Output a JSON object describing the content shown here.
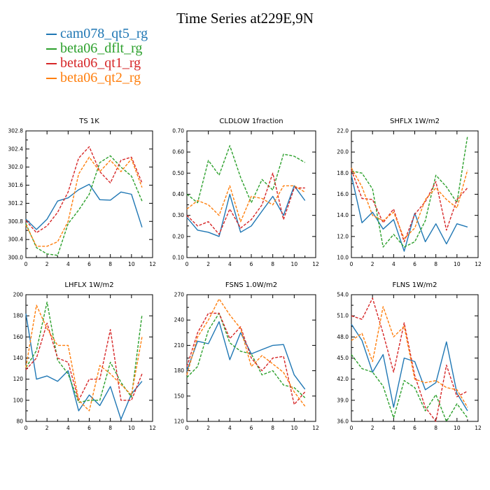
{
  "title": "Time Series at229E,9N",
  "legend": [
    {
      "name": "cam078_qt5_rg",
      "color": "#1f77b4"
    },
    {
      "name": "beta06_dflt_rg",
      "color": "#2ca02c"
    },
    {
      "name": "beta06_qt1_rg",
      "color": "#d62728"
    },
    {
      "name": "beta06_qt2_rg",
      "color": "#ff7f0e"
    }
  ],
  "chart_data": [
    {
      "type": "line",
      "title": "TS   1K",
      "x": [
        0,
        1,
        2,
        3,
        4,
        5,
        6,
        7,
        8,
        9,
        10,
        11
      ],
      "xlim": [
        0,
        12
      ],
      "xticks": [
        0,
        2,
        4,
        6,
        8,
        10,
        12
      ],
      "ylim": [
        300.0,
        302.8
      ],
      "yticks": [
        "300.0",
        "300.4",
        "300.8",
        "301.2",
        "301.6",
        "302.0",
        "302.4",
        "302.8"
      ],
      "series": [
        {
          "name": "cam078_qt5_rg",
          "color": "#1f77b4",
          "dashed": false,
          "values": [
            300.85,
            300.62,
            300.85,
            301.25,
            301.32,
            301.5,
            301.62,
            301.28,
            301.27,
            301.45,
            301.4,
            300.67
          ]
        },
        {
          "name": "beta06_dflt_rg",
          "color": "#2ca02c",
          "dashed": true,
          "values": [
            300.75,
            300.22,
            300.08,
            300.05,
            300.75,
            301.05,
            301.4,
            302.1,
            302.25,
            302.0,
            301.8,
            301.25
          ]
        },
        {
          "name": "beta06_qt1_rg",
          "color": "#d62728",
          "dashed": true,
          "values": [
            300.82,
            300.55,
            300.7,
            301.0,
            301.45,
            302.2,
            302.45,
            301.9,
            301.65,
            302.15,
            302.22,
            301.65
          ]
        },
        {
          "name": "beta06_qt2_rg",
          "color": "#ff7f0e",
          "dashed": true,
          "values": [
            300.72,
            300.25,
            300.25,
            300.35,
            300.8,
            301.85,
            302.22,
            301.9,
            302.15,
            301.9,
            302.18,
            301.55
          ]
        }
      ]
    },
    {
      "type": "line",
      "title": "CLDLOW   1fraction",
      "x": [
        0,
        1,
        2,
        3,
        4,
        5,
        6,
        7,
        8,
        9,
        10,
        11
      ],
      "xlim": [
        0,
        12
      ],
      "xticks": [
        0,
        2,
        4,
        6,
        8,
        10,
        12
      ],
      "ylim": [
        0.1,
        0.7
      ],
      "yticks": [
        "0.10",
        "0.20",
        "0.30",
        "0.40",
        "0.50",
        "0.60",
        "0.70"
      ],
      "series": [
        {
          "name": "cam078_qt5_rg",
          "color": "#1f77b4",
          "dashed": false,
          "values": [
            0.29,
            0.23,
            0.22,
            0.2,
            0.4,
            0.22,
            0.25,
            0.32,
            0.39,
            0.3,
            0.44,
            0.37
          ]
        },
        {
          "name": "beta06_dflt_rg",
          "color": "#2ca02c",
          "dashed": true,
          "values": [
            0.4,
            0.36,
            0.56,
            0.49,
            0.63,
            0.48,
            0.36,
            0.47,
            0.42,
            0.59,
            0.58,
            0.55
          ]
        },
        {
          "name": "beta06_qt1_rg",
          "color": "#d62728",
          "dashed": true,
          "values": [
            0.3,
            0.25,
            0.27,
            0.21,
            0.33,
            0.24,
            0.28,
            0.35,
            0.5,
            0.28,
            0.43,
            0.43
          ]
        },
        {
          "name": "beta06_qt2_rg",
          "color": "#ff7f0e",
          "dashed": true,
          "values": [
            0.33,
            0.37,
            0.35,
            0.3,
            0.44,
            0.27,
            0.39,
            0.38,
            0.35,
            0.44,
            0.44,
            0.41
          ]
        }
      ]
    },
    {
      "type": "line",
      "title": "SHFLX   1W/m2",
      "x": [
        0,
        1,
        2,
        3,
        4,
        5,
        6,
        7,
        8,
        9,
        10,
        11
      ],
      "xlim": [
        0,
        12
      ],
      "xticks": [
        0,
        2,
        4,
        6,
        8,
        10,
        12
      ],
      "ylim": [
        10.0,
        22.0
      ],
      "yticks": [
        "10.0",
        "12.0",
        "14.0",
        "16.0",
        "18.0",
        "20.0",
        "22.0"
      ],
      "series": [
        {
          "name": "cam078_qt5_rg",
          "color": "#1f77b4",
          "dashed": false,
          "values": [
            17.8,
            13.3,
            14.3,
            12.7,
            13.6,
            10.6,
            14.2,
            11.5,
            13.2,
            11.3,
            13.2,
            12.9
          ]
        },
        {
          "name": "beta06_dflt_rg",
          "color": "#2ca02c",
          "dashed": true,
          "values": [
            18.2,
            18.0,
            16.5,
            11.0,
            12.2,
            11.0,
            11.5,
            13.5,
            17.8,
            16.7,
            15.2,
            21.5
          ]
        },
        {
          "name": "beta06_qt1_rg",
          "color": "#d62728",
          "dashed": true,
          "values": [
            18.3,
            15.6,
            15.5,
            13.3,
            14.6,
            11.5,
            14.1,
            15.3,
            17.2,
            12.6,
            15.5,
            16.6
          ]
        },
        {
          "name": "beta06_qt2_rg",
          "color": "#ff7f0e",
          "dashed": true,
          "values": [
            18.5,
            16.7,
            14.0,
            13.5,
            14.3,
            11.8,
            12.8,
            15.5,
            16.6,
            15.5,
            14.7,
            18.3
          ]
        }
      ]
    },
    {
      "type": "line",
      "title": "LHFLX   1W/m2",
      "x": [
        0,
        1,
        2,
        3,
        4,
        5,
        6,
        7,
        8,
        9,
        10,
        11
      ],
      "xlim": [
        0,
        12
      ],
      "xticks": [
        0,
        2,
        4,
        6,
        8,
        10,
        12
      ],
      "ylim": [
        80,
        200
      ],
      "yticks": [
        "80",
        "100",
        "120",
        "140",
        "160",
        "180",
        "200"
      ],
      "series": [
        {
          "name": "cam078_qt5_rg",
          "color": "#1f77b4",
          "dashed": false,
          "values": [
            182,
            120,
            123,
            118,
            128,
            90,
            105,
            95,
            113,
            82,
            106,
            118
          ]
        },
        {
          "name": "beta06_dflt_rg",
          "color": "#2ca02c",
          "dashed": true,
          "values": [
            131,
            147,
            193,
            138,
            125,
            98,
            100,
            100,
            136,
            117,
            103,
            181
          ]
        },
        {
          "name": "beta06_qt1_rg",
          "color": "#d62728",
          "dashed": true,
          "values": [
            129,
            140,
            173,
            140,
            136,
            100,
            120,
            120,
            167,
            100,
            100,
            125
          ]
        },
        {
          "name": "beta06_qt2_rg",
          "color": "#ff7f0e",
          "dashed": true,
          "values": [
            131,
            190,
            168,
            152,
            152,
            100,
            90,
            133,
            125,
            115,
            105,
            160
          ]
        }
      ]
    },
    {
      "type": "line",
      "title": "FSNS   1.0W/m2",
      "x": [
        0,
        1,
        2,
        3,
        4,
        5,
        6,
        7,
        8,
        9,
        10,
        11
      ],
      "xlim": [
        0,
        12
      ],
      "xticks": [
        0,
        2,
        4,
        6,
        8,
        10,
        12
      ],
      "ylim": [
        120,
        270
      ],
      "yticks": [
        "120",
        "150",
        "180",
        "210",
        "240",
        "270"
      ],
      "series": [
        {
          "name": "cam078_qt5_rg",
          "color": "#1f77b4",
          "dashed": false,
          "values": [
            180,
            215,
            212,
            238,
            193,
            225,
            200,
            205,
            210,
            211,
            175,
            158
          ]
        },
        {
          "name": "beta06_dflt_rg",
          "color": "#2ca02c",
          "dashed": true,
          "values": [
            172,
            185,
            228,
            248,
            213,
            203,
            200,
            175,
            180,
            163,
            160,
            148
          ]
        },
        {
          "name": "beta06_qt1_rg",
          "color": "#d62728",
          "dashed": true,
          "values": [
            185,
            225,
            248,
            248,
            218,
            232,
            195,
            180,
            195,
            197,
            140,
            155
          ]
        },
        {
          "name": "beta06_qt2_rg",
          "color": "#ff7f0e",
          "dashed": true,
          "values": [
            175,
            220,
            240,
            265,
            246,
            230,
            185,
            198,
            188,
            178,
            155,
            138
          ]
        }
      ]
    },
    {
      "type": "line",
      "title": "FLNS   1W/m2",
      "x": [
        0,
        1,
        2,
        3,
        4,
        5,
        6,
        7,
        8,
        9,
        10,
        11
      ],
      "xlim": [
        0,
        12
      ],
      "xticks": [
        0,
        2,
        4,
        6,
        8,
        10,
        12
      ],
      "ylim": [
        36.0,
        54.0
      ],
      "yticks": [
        "36.0",
        "39.0",
        "42.0",
        "45.0",
        "48.0",
        "51.0",
        "54.0"
      ],
      "series": [
        {
          "name": "cam078_qt5_rg",
          "color": "#1f77b4",
          "dashed": false,
          "values": [
            49.8,
            47.5,
            43.0,
            45.5,
            38.0,
            45.0,
            44.5,
            40.5,
            41.5,
            47.3,
            40.0,
            37.5
          ]
        },
        {
          "name": "beta06_dflt_rg",
          "color": "#2ca02c",
          "dashed": true,
          "values": [
            45.5,
            43.5,
            43.0,
            41.0,
            36.5,
            41.8,
            40.8,
            37.5,
            39.8,
            36.0,
            38.5,
            36.5
          ]
        },
        {
          "name": "beta06_qt1_rg",
          "color": "#d62728",
          "dashed": true,
          "values": [
            51.0,
            50.5,
            53.5,
            48.5,
            43.0,
            50.0,
            42.5,
            38.0,
            36.0,
            44.0,
            39.5,
            40.3
          ]
        },
        {
          "name": "beta06_qt2_rg",
          "color": "#ff7f0e",
          "dashed": true,
          "values": [
            47.5,
            48.5,
            44.5,
            52.3,
            48.0,
            49.5,
            42.0,
            41.5,
            41.8,
            40.8,
            40.5,
            38.0
          ]
        }
      ]
    }
  ]
}
